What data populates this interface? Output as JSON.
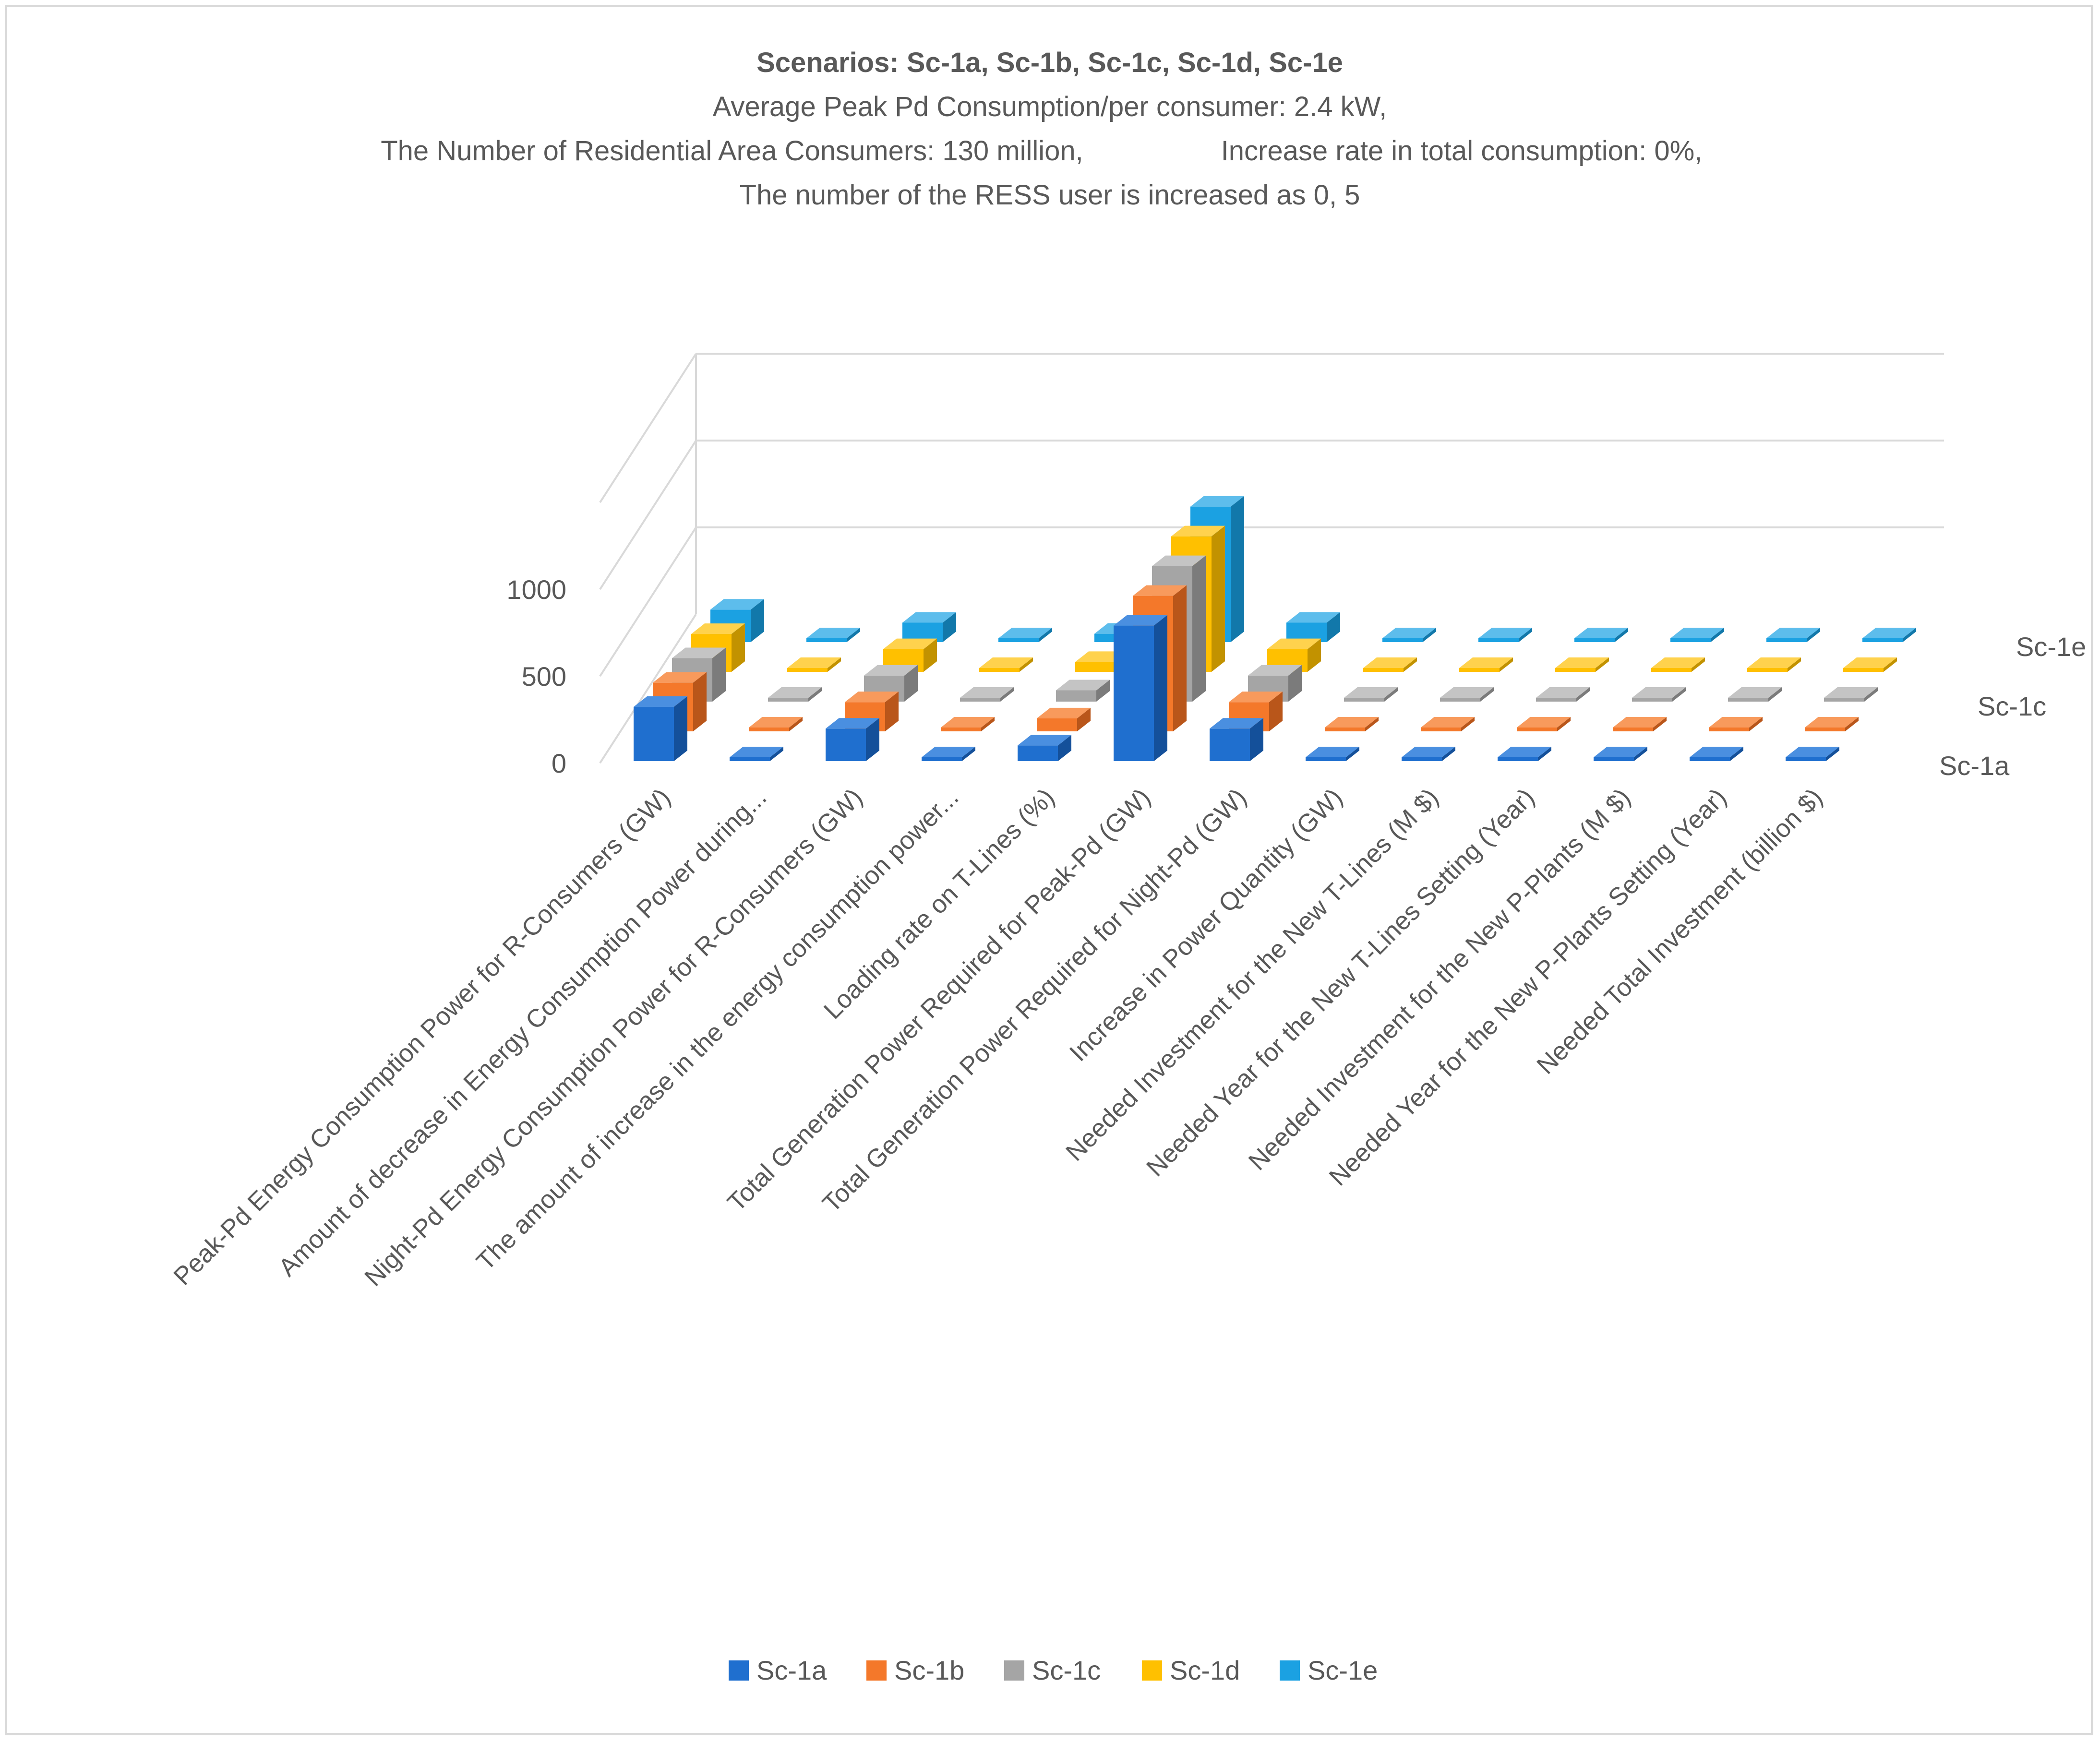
{
  "chart_data": {
    "type": "bar",
    "subtype": "3d-column",
    "title": {
      "bold": "Scenarios:  Sc-1a, Sc-1b, Sc-1c, Sc-1d, Sc-1e",
      "line2": "Average Peak Pd Consumption/per consumer: 2.4 kW,",
      "line3a": "The Number of Residential Area Consumers: 130 million,",
      "line3b": "Increase rate in total consumption: 0%,",
      "line4": "The number of the RESS user is increased as 0, 5"
    },
    "z_ticks": [
      "0",
      "500",
      "1000"
    ],
    "zlim": [
      0,
      1500
    ],
    "categories": [
      "Peak-Pd Energy Consumption Power for R-Consumers (GW)",
      "Amount of decrease in Energy Consumption Power during...",
      "Night-Pd Energy Consumption Power for R-Consumers (GW)",
      "The amount of increase in the energy consumption power...",
      "Loading rate on T-Lines (%)",
      "Total Generation Power Required for Peak-Pd (GW)",
      "Total Generation Power Required for Night-Pd (GW)",
      "Increase in Power Quantity (GW)",
      "Needed Investment for the New T-Lines (M $)",
      "Needed Year for the New T-Lines Setting (Year)",
      "Needed Investment for the New P-Plants (M $)",
      "Needed Year for the New P-Plants Setting (Year)",
      "Needed Total Investment (billion $)"
    ],
    "series_axis_labels": [
      "Sc-1a",
      "Sc-1c",
      "Sc-1e"
    ],
    "series": [
      {
        "name": "Sc-1a",
        "color": "#1f6fcf",
        "side": "#14509a",
        "top": "#4a8fe0",
        "values": [
          312,
          0,
          187,
          0,
          90,
          780,
          187,
          0,
          0,
          0,
          0,
          0,
          0
        ]
      },
      {
        "name": "Sc-1b",
        "color": "#f4782a",
        "side": "#b9561a",
        "top": "#f89a5c",
        "values": [
          280,
          0,
          168,
          0,
          75,
          780,
          168,
          0,
          0,
          0,
          0,
          0,
          0
        ]
      },
      {
        "name": "Sc-1c",
        "color": "#a5a5a5",
        "side": "#7b7b7b",
        "top": "#c4c4c4",
        "values": [
          250,
          0,
          150,
          0,
          65,
          780,
          150,
          0,
          0,
          0,
          0,
          0,
          0
        ]
      },
      {
        "name": "Sc-1d",
        "color": "#ffc000",
        "side": "#c29200",
        "top": "#ffd24d",
        "values": [
          218,
          0,
          131,
          0,
          57,
          780,
          131,
          0,
          0,
          0,
          0,
          0,
          0
        ]
      },
      {
        "name": "Sc-1e",
        "color": "#1ba1e2",
        "side": "#1278aa",
        "top": "#5dbdec",
        "values": [
          187,
          0,
          112,
          0,
          48,
          780,
          112,
          0,
          0,
          0,
          0,
          0,
          0
        ]
      }
    ],
    "legend": {
      "position": "bottom",
      "entries": [
        "Sc-1a",
        "Sc-1b",
        "Sc-1c",
        "Sc-1d",
        "Sc-1e"
      ]
    }
  }
}
